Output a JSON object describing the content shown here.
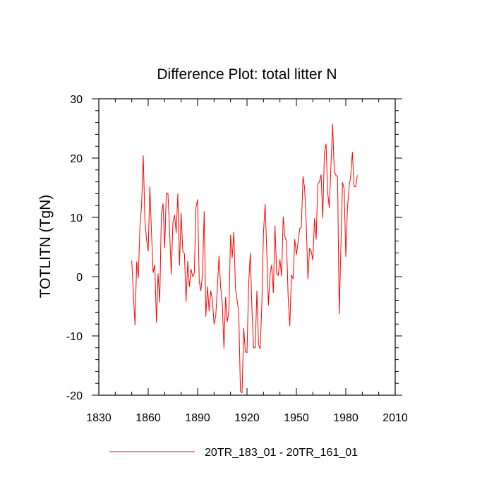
{
  "chart_data": {
    "type": "line",
    "title": "Difference Plot: total litter N",
    "xlabel": "",
    "ylabel": "TOTLITN  (TgN)",
    "xlim": [
      1830,
      2010
    ],
    "ylim": [
      -20,
      30
    ],
    "x_major_ticks": [
      1830,
      1860,
      1890,
      1920,
      1950,
      1980,
      2010
    ],
    "x_tick_labels": [
      "1830",
      "1860",
      "1890",
      "1920",
      "1950",
      "1980",
      "2010"
    ],
    "y_major_ticks": [
      -20,
      -10,
      0,
      10,
      20,
      30
    ],
    "y_tick_labels": [
      "-20",
      "-10",
      "0",
      "10",
      "20",
      "30"
    ],
    "legend_position": "bottom-center",
    "series": [
      {
        "name": "20TR_183_01 - 20TR_161_01",
        "color": "#ff0000",
        "x_start": 1850,
        "x_step": 1,
        "values": [
          2.7,
          -3.0,
          -8.2,
          2.5,
          -0.2,
          8.6,
          12.2,
          20.4,
          9.5,
          6.2,
          4.3,
          15.2,
          7.4,
          0.7,
          2.0,
          -7.7,
          0.5,
          -4.3,
          10.6,
          12.3,
          4.8,
          14.1,
          14.0,
          7.7,
          0.4,
          9.1,
          10.4,
          7.4,
          14.0,
          1.9,
          10.7,
          4.3,
          3.9,
          -4.2,
          2.6,
          -1.7,
          1.3,
          0.0,
          0.6,
          11.7,
          13.0,
          -0.8,
          -2.4,
          0.6,
          11.0,
          -6.7,
          -1.7,
          -5.8,
          -2.4,
          -4.0,
          -8.0,
          -6.7,
          -2.0,
          3.5,
          -1.8,
          -4.5,
          -12.1,
          -3.5,
          -7.6,
          -5.8,
          7.0,
          3.2,
          7.5,
          -2.0,
          -4.0,
          -6.0,
          -19.3,
          -19.6,
          -8.7,
          -12.7,
          -12.8,
          -1.4,
          4.0,
          -5.5,
          -12.0,
          -12.0,
          -2.4,
          -11.4,
          -12.2,
          -4.8,
          7.4,
          12.2,
          4.4,
          -4.8,
          0.4,
          2.0,
          -2.7,
          8.6,
          0.6,
          0.2,
          2.9,
          0.1,
          10.1,
          6.8,
          5.9,
          -3.5,
          -8.3,
          0.3,
          -0.4,
          6.3,
          3.7,
          5.8,
          8.1,
          8.3,
          16.9,
          14.9,
          8.8,
          -0.4,
          4.8,
          4.3,
          2.8,
          9.8,
          6.3,
          15.6,
          16.0,
          17.2,
          9.9,
          20.9,
          22.4,
          14.2,
          11.6,
          18.8,
          25.7,
          17.7,
          17.1,
          16.9,
          -6.3,
          4.6,
          15.9,
          14.8,
          3.4,
          11.6,
          15.1,
          17.0,
          21.0,
          15.2,
          15.2,
          17.1
        ]
      }
    ]
  }
}
